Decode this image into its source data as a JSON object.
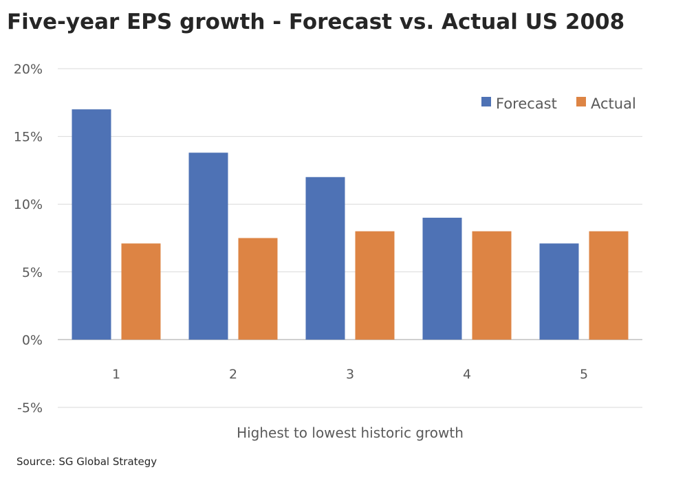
{
  "chart_data": {
    "type": "bar",
    "title": "Five-year EPS growth - Forecast vs. Actual US 2008",
    "xlabel": "Highest to lowest historic growth",
    "ylabel": "",
    "categories": [
      "1",
      "2",
      "3",
      "4",
      "5"
    ],
    "series": [
      {
        "name": "Forecast",
        "color": "#4e72b5",
        "values": [
          17.0,
          13.8,
          12.0,
          9.0,
          7.1
        ]
      },
      {
        "name": "Actual",
        "color": "#dd8444",
        "values": [
          7.1,
          7.5,
          8.0,
          8.0,
          8.0
        ]
      }
    ],
    "yticks": [
      "20%",
      "15%",
      "10%",
      "5%",
      "0%",
      "-5%"
    ],
    "ytick_values": [
      20,
      15,
      10,
      5,
      0,
      -5
    ],
    "ylim": [
      -5,
      20
    ],
    "unit": "%",
    "grid": true,
    "legend_position": "top-right"
  },
  "source": "Source: SG Global Strategy"
}
